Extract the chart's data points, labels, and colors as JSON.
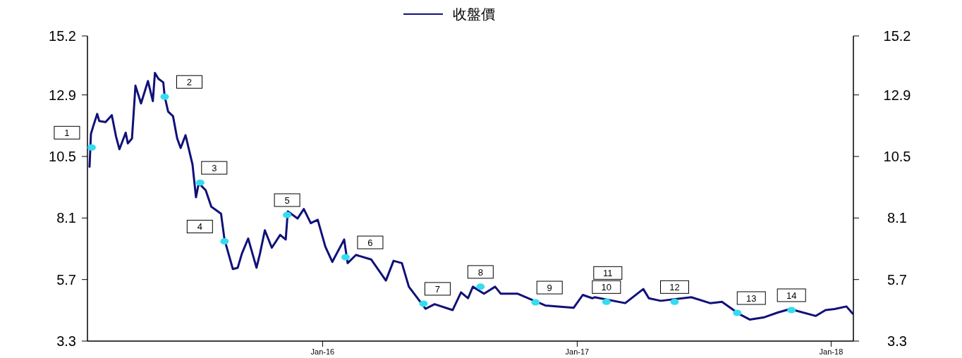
{
  "chart_data": {
    "type": "line",
    "legend": "top",
    "xlim": [
      "2015-01-28",
      "2018-02-02"
    ],
    "xticks": [
      {
        "value": "2016-01-01",
        "label": "Jan-16"
      },
      {
        "value": "2017-01-01",
        "label": "Jan-17"
      },
      {
        "value": "2018-01-01",
        "label": "Jan-18"
      }
    ],
    "ylim": [
      3.3,
      15.2
    ],
    "yticks": [
      3.3,
      5.7,
      8.1,
      10.5,
      12.9,
      15.2
    ],
    "y2lim": [
      3.3,
      15.2
    ],
    "y2ticks": [
      3.3,
      5.7,
      8.1,
      10.5,
      12.9,
      15.2
    ],
    "series": [
      {
        "name": "收盤價",
        "color": "#10107a",
        "x": [
          "2015-01-31",
          "2015-02-02",
          "2015-02-05",
          "2015-02-11",
          "2015-02-14",
          "2015-02-23",
          "2015-03-04",
          "2015-03-10",
          "2015-03-15",
          "2015-03-24",
          "2015-03-27",
          "2015-04-02",
          "2015-04-07",
          "2015-04-15",
          "2015-04-25",
          "2015-05-02",
          "2015-05-05",
          "2015-05-10",
          "2015-05-17",
          "2015-05-19",
          "2015-05-24",
          "2015-05-31",
          "2015-06-06",
          "2015-06-11",
          "2015-06-18",
          "2015-06-28",
          "2015-07-03",
          "2015-07-07",
          "2015-07-17",
          "2015-07-25",
          "2015-08-08",
          "2015-08-13",
          "2015-08-25",
          "2015-09-01",
          "2015-09-07",
          "2015-09-16",
          "2015-09-28",
          "2015-10-03",
          "2015-10-10",
          "2015-10-20",
          "2015-11-01",
          "2015-11-09",
          "2015-11-12",
          "2015-11-26",
          "2015-12-05",
          "2015-12-15",
          "2015-12-25",
          "2016-01-05",
          "2016-01-15",
          "2016-02-01",
          "2016-02-06",
          "2016-02-18",
          "2016-03-11",
          "2016-04-01",
          "2016-04-12",
          "2016-04-24",
          "2016-05-04",
          "2016-05-28",
          "2016-06-10",
          "2016-07-06",
          "2016-07-18",
          "2016-07-28",
          "2016-08-04",
          "2016-08-20",
          "2016-09-05",
          "2016-09-13",
          "2016-10-07",
          "2016-11-16",
          "2016-12-27",
          "2017-01-09",
          "2017-01-23",
          "2017-01-26",
          "2017-03-11",
          "2017-04-06",
          "2017-04-14",
          "2017-05-01",
          "2017-06-14",
          "2017-07-11",
          "2017-07-28",
          "2017-08-21",
          "2017-09-06",
          "2017-09-27",
          "2017-10-17",
          "2017-11-03",
          "2017-12-10",
          "2017-12-24",
          "2018-01-06",
          "2018-01-23",
          "2018-02-01"
        ],
        "values": [
          10.1,
          11.38,
          11.65,
          12.16,
          11.88,
          11.84,
          12.11,
          11.29,
          10.78,
          11.43,
          11.01,
          11.2,
          13.26,
          12.57,
          13.44,
          12.66,
          13.76,
          13.53,
          13.39,
          12.84,
          12.25,
          12.07,
          11.2,
          10.83,
          11.33,
          10.19,
          8.91,
          9.46,
          9.18,
          8.54,
          8.27,
          7.26,
          6.11,
          6.16,
          6.71,
          7.3,
          6.16,
          6.71,
          7.62,
          6.94,
          7.44,
          7.26,
          8.36,
          8.08,
          8.45,
          7.9,
          8.03,
          6.98,
          6.39,
          7.26,
          6.34,
          6.66,
          6.48,
          5.66,
          6.43,
          6.34,
          5.42,
          4.56,
          4.74,
          4.51,
          5.2,
          4.97,
          5.42,
          5.15,
          5.42,
          5.15,
          5.15,
          4.69,
          4.6,
          5.1,
          4.97,
          5.01,
          4.78,
          5.33,
          4.97,
          4.87,
          5.01,
          4.78,
          4.83,
          4.37,
          4.14,
          4.23,
          4.42,
          4.55,
          4.28,
          4.51,
          4.55,
          4.65,
          4.37
        ]
      },
      {
        "type": "scatter",
        "color": "#33ddee",
        "x": [
          "2015-02-03",
          "2015-05-19",
          "2015-07-09",
          "2015-08-13",
          "2015-11-11",
          "2016-02-03",
          "2016-05-25",
          "2016-08-15",
          "2016-11-02",
          "2017-02-12",
          "2017-05-21",
          "2017-08-19",
          "2017-11-05"
        ],
        "values": [
          10.85,
          12.83,
          9.48,
          7.19,
          8.22,
          6.57,
          4.76,
          5.42,
          4.81,
          4.83,
          4.83,
          4.4,
          4.51
        ]
      }
    ],
    "annotations": [
      {
        "text": "1",
        "x": "2015-02-03",
        "y": 10.85
      },
      {
        "text": "2",
        "x": "2015-05-19",
        "y": 12.83
      },
      {
        "text": "3",
        "x": "2015-07-09",
        "y": 9.48
      },
      {
        "text": "4",
        "x": "2015-08-13",
        "y": 7.19
      },
      {
        "text": "5",
        "x": "2015-11-11",
        "y": 8.22
      },
      {
        "text": "6",
        "x": "2016-02-03",
        "y": 6.57
      },
      {
        "text": "7",
        "x": "2016-05-25",
        "y": 4.76
      },
      {
        "text": "8",
        "x": "2016-08-15",
        "y": 5.42
      },
      {
        "text": "9",
        "x": "2016-11-02",
        "y": 4.81
      },
      {
        "text": "10",
        "x": "2017-02-12",
        "y": 4.83
      },
      {
        "text": "11",
        "x": "2017-02-14",
        "y": 4.83
      },
      {
        "text": "12",
        "x": "2017-05-21",
        "y": 4.83
      },
      {
        "text": "13",
        "x": "2017-08-19",
        "y": 4.4
      },
      {
        "text": "14",
        "x": "2017-11-05",
        "y": 4.51
      }
    ]
  }
}
